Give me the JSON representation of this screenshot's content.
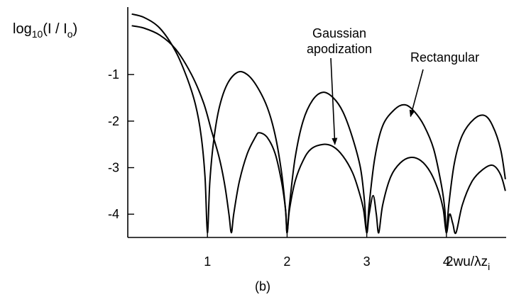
{
  "chart_data": {
    "type": "line",
    "title": "",
    "ylabel": {
      "prefix": "log",
      "sub1": "10",
      "mid": "(I / I",
      "sub2": "o",
      "suffix": ")"
    },
    "xlabel": {
      "main": "2wu/λz",
      "sub": "i"
    },
    "caption": "(b)",
    "xlim": [
      0,
      4.75
    ],
    "ylim": [
      -4.5,
      0.45
    ],
    "x_ticks": [
      1,
      2,
      3,
      4
    ],
    "x_tick_labels": [
      "1",
      "2",
      "3",
      "4"
    ],
    "y_ticks": [
      -1,
      -2,
      -3,
      -4
    ],
    "y_tick_labels": [
      "-1",
      "-2",
      "-3",
      "-4"
    ],
    "grid": false,
    "annotations": [
      {
        "text": [
          "Gaussian",
          "apodization"
        ],
        "series": "gaussian",
        "arrow_to": [
          2.6,
          -2.5
        ]
      },
      {
        "text": [
          "Rectangular"
        ],
        "series": "rectangular",
        "arrow_to": [
          3.55,
          -1.9
        ]
      }
    ],
    "series": [
      {
        "id": "rectangular",
        "x": [
          0.05,
          0.2,
          0.4,
          0.6,
          0.75,
          0.85,
          0.92,
          0.97,
          1.0,
          1.03,
          1.08,
          1.15,
          1.25,
          1.38,
          1.5,
          1.62,
          1.75,
          1.85,
          1.93,
          1.98,
          2.0,
          2.03,
          2.1,
          2.2,
          2.32,
          2.45,
          2.58,
          2.7,
          2.82,
          2.92,
          2.97,
          3.0,
          3.03,
          3.1,
          3.2,
          3.35,
          3.48,
          3.6,
          3.72,
          3.84,
          3.94,
          3.98,
          4.0,
          4.03,
          4.1,
          4.2,
          4.35,
          4.48,
          4.58,
          4.68,
          4.74
        ],
        "y": [
          0.3,
          0.23,
          0.0,
          -0.5,
          -1.1,
          -1.65,
          -2.3,
          -3.2,
          -4.4,
          -3.3,
          -2.4,
          -1.7,
          -1.2,
          -0.95,
          -1.0,
          -1.25,
          -1.7,
          -2.3,
          -3.1,
          -3.9,
          -4.4,
          -3.8,
          -2.8,
          -2.0,
          -1.55,
          -1.38,
          -1.5,
          -1.8,
          -2.35,
          -3.0,
          -3.7,
          -4.4,
          -3.8,
          -2.8,
          -2.1,
          -1.75,
          -1.65,
          -1.8,
          -2.1,
          -2.6,
          -3.4,
          -3.9,
          -4.4,
          -3.8,
          -2.9,
          -2.3,
          -1.95,
          -1.88,
          -2.1,
          -2.6,
          -3.25
        ]
      },
      {
        "id": "gaussian",
        "x": [
          0.05,
          0.2,
          0.4,
          0.6,
          0.8,
          0.95,
          1.05,
          1.15,
          1.22,
          1.27,
          1.3,
          1.33,
          1.4,
          1.5,
          1.6,
          1.65,
          1.75,
          1.85,
          1.93,
          1.98,
          2.0,
          2.03,
          2.1,
          2.2,
          2.3,
          2.45,
          2.58,
          2.7,
          2.82,
          2.9,
          2.96,
          3.0,
          3.03,
          3.08,
          3.12,
          3.15,
          3.2,
          3.3,
          3.42,
          3.55,
          3.68,
          3.8,
          3.9,
          3.96,
          4.0,
          4.04,
          4.08,
          4.12,
          4.2,
          4.32,
          4.45,
          4.58,
          4.68,
          4.74
        ],
        "y": [
          0.05,
          0.0,
          -0.15,
          -0.45,
          -1.0,
          -1.6,
          -2.2,
          -2.8,
          -3.4,
          -4.0,
          -4.4,
          -4.0,
          -3.3,
          -2.7,
          -2.35,
          -2.25,
          -2.35,
          -2.7,
          -3.3,
          -3.9,
          -4.4,
          -3.9,
          -3.3,
          -2.85,
          -2.6,
          -2.5,
          -2.55,
          -2.75,
          -3.1,
          -3.5,
          -3.9,
          -4.4,
          -4.0,
          -3.6,
          -4.0,
          -4.4,
          -3.8,
          -3.2,
          -2.9,
          -2.78,
          -2.85,
          -3.1,
          -3.5,
          -3.9,
          -4.4,
          -4.0,
          -4.2,
          -4.4,
          -3.8,
          -3.3,
          -3.05,
          -2.95,
          -3.15,
          -3.5
        ]
      }
    ]
  }
}
